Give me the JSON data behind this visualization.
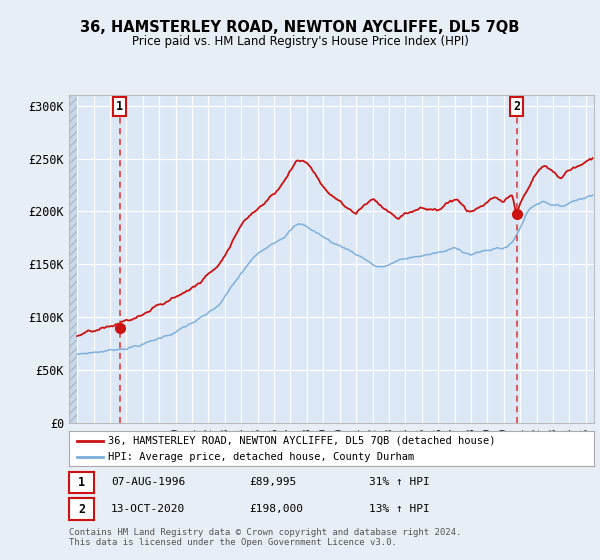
{
  "title": "36, HAMSTERLEY ROAD, NEWTON AYCLIFFE, DL5 7QB",
  "subtitle": "Price paid vs. HM Land Registry's House Price Index (HPI)",
  "background_color": "#e8eef5",
  "plot_bg_color": "#dce8f5",
  "legend_line1": "36, HAMSTERLEY ROAD, NEWTON AYCLIFFE, DL5 7QB (detached house)",
  "legend_line2": "HPI: Average price, detached house, County Durham",
  "footer": "Contains HM Land Registry data © Crown copyright and database right 2024.\nThis data is licensed under the Open Government Licence v3.0.",
  "sale1_label": "1",
  "sale1_date": "07-AUG-1996",
  "sale1_price": "£89,995",
  "sale1_change": "31% ↑ HPI",
  "sale2_label": "2",
  "sale2_date": "13-OCT-2020",
  "sale2_price": "£198,000",
  "sale2_change": "13% ↑ HPI",
  "hpi_color": "#7aadda",
  "price_color": "#cc1111",
  "dashed_color": "#dd3333",
  "marker_color": "#cc1111",
  "ylim_max": 310000,
  "yticks": [
    0,
    50000,
    100000,
    150000,
    200000,
    250000,
    300000
  ],
  "ytick_labels": [
    "£0",
    "£50K",
    "£100K",
    "£150K",
    "£200K",
    "£250K",
    "£300K"
  ],
  "sale1_x": 1996.58,
  "sale1_y": 89995,
  "sale2_x": 2020.78,
  "sale2_y": 198000,
  "xmin": 1993.5,
  "xmax": 2025.5
}
